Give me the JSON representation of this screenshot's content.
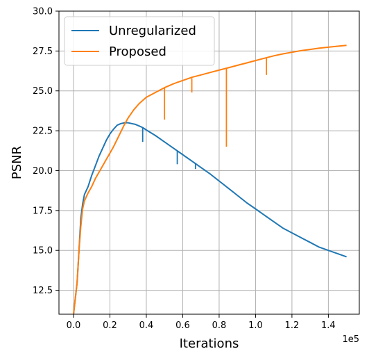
{
  "chart_data": {
    "type": "line",
    "title": "",
    "xlabel": "Iterations",
    "ylabel": "PSNR",
    "x_offset_label": "1e5",
    "xlim": [
      -0.08,
      1.57
    ],
    "ylim": [
      11.0,
      30.0
    ],
    "x_ticks": [
      0.0,
      0.2,
      0.4,
      0.6,
      0.8,
      1.0,
      1.2,
      1.4
    ],
    "x_tick_labels": [
      "0.0",
      "0.2",
      "0.4",
      "0.6",
      "0.8",
      "1.0",
      "1.2",
      "1.4"
    ],
    "y_ticks": [
      12.5,
      15.0,
      17.5,
      20.0,
      22.5,
      25.0,
      27.5,
      30.0
    ],
    "y_tick_labels": [
      "12.5",
      "15.0",
      "17.5",
      "20.0",
      "22.5",
      "25.0",
      "27.5",
      "30.0"
    ],
    "grid": true,
    "legend_position": "top-left",
    "series": [
      {
        "name": "Unregularized",
        "color": "#1f77b4",
        "x": [
          0.0,
          0.01,
          0.02,
          0.03,
          0.04,
          0.05,
          0.06,
          0.08,
          0.1,
          0.12,
          0.14,
          0.16,
          0.18,
          0.2,
          0.22,
          0.24,
          0.26,
          0.28,
          0.3,
          0.32,
          0.34,
          0.36,
          0.38,
          0.4,
          0.45,
          0.5,
          0.55,
          0.6,
          0.65,
          0.7,
          0.75,
          0.8,
          0.85,
          0.9,
          0.95,
          1.0,
          1.05,
          1.1,
          1.15,
          1.2,
          1.25,
          1.3,
          1.35,
          1.4,
          1.45,
          1.5
        ],
        "y": [
          11.0,
          12.0,
          13.0,
          15.0,
          17.0,
          17.9,
          18.5,
          19.0,
          19.7,
          20.3,
          20.9,
          21.4,
          21.9,
          22.3,
          22.6,
          22.85,
          22.95,
          23.0,
          23.0,
          22.95,
          22.9,
          22.8,
          22.7,
          22.55,
          22.2,
          21.8,
          21.4,
          21.0,
          20.6,
          20.2,
          19.8,
          19.35,
          18.9,
          18.45,
          18.0,
          17.6,
          17.2,
          16.8,
          16.4,
          16.1,
          15.8,
          15.5,
          15.2,
          15.0,
          14.8,
          14.6
        ]
      },
      {
        "name": "Proposed",
        "color": "#ff7f0e",
        "x": [
          0.0,
          0.01,
          0.02,
          0.03,
          0.04,
          0.05,
          0.06,
          0.08,
          0.1,
          0.12,
          0.14,
          0.16,
          0.18,
          0.2,
          0.22,
          0.25,
          0.28,
          0.3,
          0.33,
          0.36,
          0.4,
          0.45,
          0.5,
          0.55,
          0.6,
          0.65,
          0.7,
          0.75,
          0.8,
          0.85,
          0.9,
          0.95,
          1.0,
          1.05,
          1.1,
          1.15,
          1.2,
          1.25,
          1.3,
          1.35,
          1.4,
          1.45,
          1.5
        ],
        "y": [
          11.0,
          12.0,
          13.0,
          15.0,
          16.5,
          17.6,
          18.1,
          18.6,
          19.0,
          19.5,
          19.9,
          20.3,
          20.7,
          21.1,
          21.5,
          22.2,
          22.9,
          23.3,
          23.8,
          24.2,
          24.6,
          24.9,
          25.2,
          25.45,
          25.65,
          25.85,
          26.0,
          26.15,
          26.3,
          26.45,
          26.6,
          26.75,
          26.9,
          27.05,
          27.2,
          27.32,
          27.42,
          27.52,
          27.6,
          27.68,
          27.74,
          27.8,
          27.85
        ]
      }
    ],
    "dips": [
      {
        "series": 0,
        "x": 0.38,
        "y_top": 22.7,
        "y_bottom": 21.8
      },
      {
        "series": 0,
        "x": 0.57,
        "y_top": 21.2,
        "y_bottom": 20.4
      },
      {
        "series": 0,
        "x": 0.67,
        "y_top": 20.5,
        "y_bottom": 20.1
      },
      {
        "series": 1,
        "x": 0.5,
        "y_top": 25.2,
        "y_bottom": 23.2
      },
      {
        "series": 1,
        "x": 0.65,
        "y_top": 25.8,
        "y_bottom": 24.9
      },
      {
        "series": 1,
        "x": 0.84,
        "y_top": 26.4,
        "y_bottom": 21.5
      },
      {
        "series": 1,
        "x": 1.06,
        "y_top": 27.05,
        "y_bottom": 26.0
      }
    ]
  }
}
